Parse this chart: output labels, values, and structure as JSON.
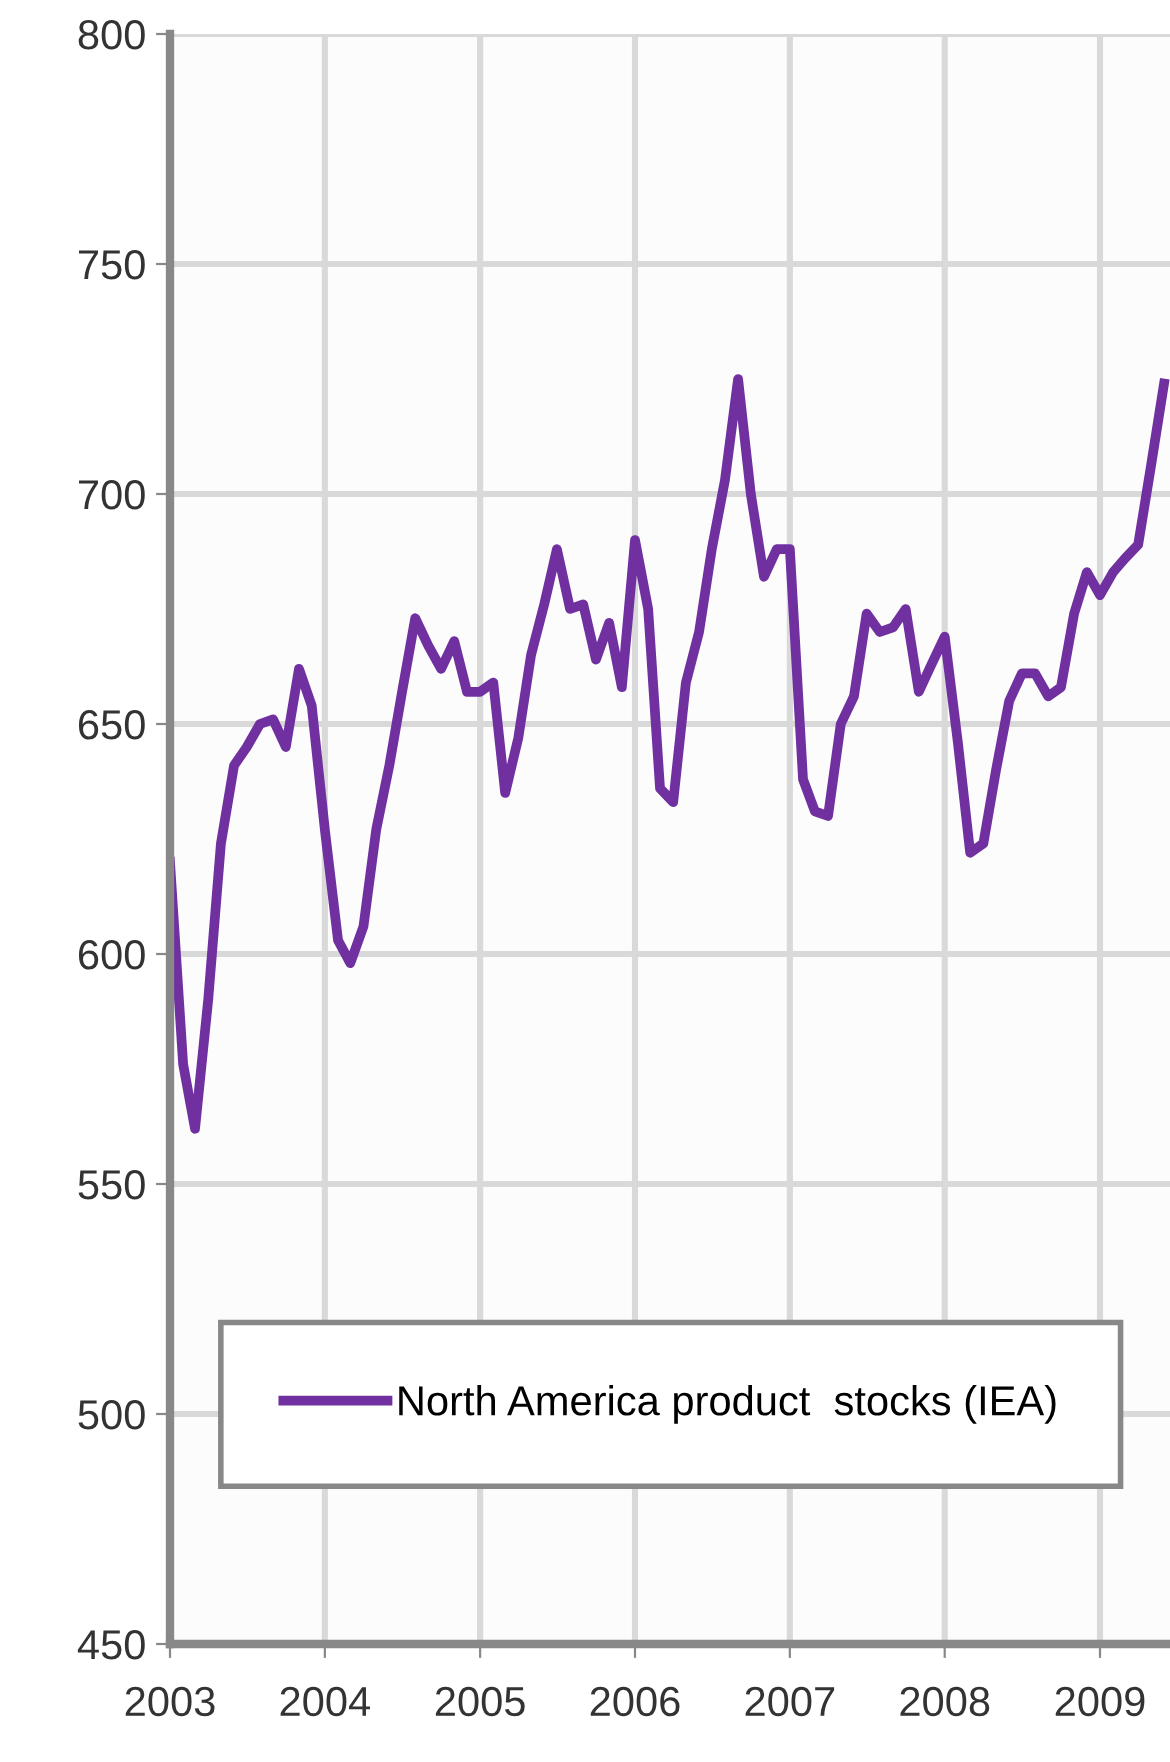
{
  "chart_data": {
    "type": "line",
    "x": [
      "2003-01",
      "2003-02",
      "2003-03",
      "2003-04",
      "2003-05",
      "2003-06",
      "2003-07",
      "2003-08",
      "2003-09",
      "2003-10",
      "2003-11",
      "2003-12",
      "2004-01",
      "2004-02",
      "2004-03",
      "2004-04",
      "2004-05",
      "2004-06",
      "2004-07",
      "2004-08",
      "2004-09",
      "2004-10",
      "2004-11",
      "2004-12",
      "2005-01",
      "2005-02",
      "2005-03",
      "2005-04",
      "2005-05",
      "2005-06",
      "2005-07",
      "2005-08",
      "2005-09",
      "2005-10",
      "2005-11",
      "2005-12",
      "2006-01",
      "2006-02",
      "2006-03",
      "2006-04",
      "2006-05",
      "2006-06",
      "2006-07",
      "2006-08",
      "2006-09",
      "2006-10",
      "2006-11",
      "2006-12",
      "2007-01",
      "2007-02",
      "2007-03",
      "2007-04",
      "2007-05",
      "2007-06",
      "2007-07",
      "2007-08",
      "2007-09",
      "2007-10",
      "2007-11",
      "2007-12",
      "2008-01",
      "2008-02",
      "2008-03",
      "2008-04",
      "2008-05",
      "2008-06",
      "2008-07",
      "2008-08",
      "2008-09",
      "2008-10",
      "2008-11",
      "2008-12",
      "2009-01",
      "2009-02",
      "2009-03",
      "2009-04",
      "2009-05",
      "2009-06"
    ],
    "series": [
      {
        "name": "North America product  stocks (IEA)",
        "color": "#7030a0",
        "values": [
          620,
          576,
          562,
          590,
          624,
          641,
          645,
          650,
          651,
          645,
          662,
          654,
          627,
          603,
          598,
          606,
          627,
          641,
          657,
          673,
          667,
          662,
          668,
          657,
          657,
          659,
          635,
          647,
          665,
          676,
          688,
          675,
          676,
          664,
          672,
          658,
          690,
          675,
          636,
          633,
          659,
          670,
          688,
          703,
          725,
          700,
          682,
          688,
          688,
          638,
          631,
          630,
          650,
          656,
          674,
          670,
          671,
          675,
          657,
          663,
          669,
          646,
          622,
          624,
          640,
          655,
          661,
          661,
          656,
          658,
          674,
          683,
          678,
          683,
          686,
          689,
          706,
          724
        ]
      }
    ],
    "xlim": [
      "2003-01",
      "2009-06-15"
    ],
    "xticks": [
      {
        "value": "2003-01",
        "label": "2003"
      },
      {
        "value": "2004-01",
        "label": "2004"
      },
      {
        "value": "2005-01",
        "label": "2005"
      },
      {
        "value": "2006-01",
        "label": "2006"
      },
      {
        "value": "2007-01",
        "label": "2007"
      },
      {
        "value": "2008-01",
        "label": "2008"
      },
      {
        "value": "2009-01",
        "label": "2009"
      }
    ],
    "ylim": [
      450,
      800
    ],
    "yticks": [
      450,
      500,
      550,
      600,
      650,
      700,
      750,
      800
    ],
    "grid": true,
    "legend": "bottom",
    "marker": "none",
    "line_style": "solid"
  }
}
